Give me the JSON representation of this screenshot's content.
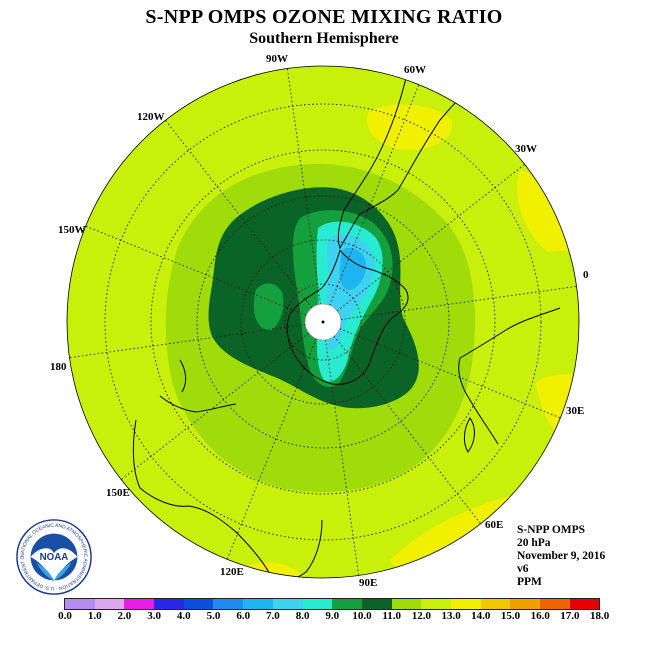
{
  "title": "S-NPP OMPS OZONE MIXING RATIO",
  "subtitle": "Southern Hemisphere",
  "longitude_labels": [
    "90W",
    "60W",
    "30W",
    "0",
    "30E",
    "60E",
    "90E",
    "120E",
    "150E",
    "180",
    "150W",
    "120W"
  ],
  "info": {
    "instrument": "S-NPP OMPS",
    "level": "20 hPa",
    "date": "November 9, 2016",
    "version": "v6",
    "units": "PPM"
  },
  "logo": {
    "text": "NOAA",
    "ring_text": "NATIONAL OCEANIC AND ATMOSPHERIC ADMINISTRATION · U.S. DEPARTMENT OF COMMERCE"
  },
  "colorbar": {
    "ticks": [
      "0.0",
      "1.0",
      "2.0",
      "3.0",
      "4.0",
      "5.0",
      "6.0",
      "7.0",
      "8.0",
      "9.0",
      "10.0",
      "11.0",
      "12.0",
      "13.0",
      "14.0",
      "15.0",
      "16.0",
      "17.0",
      "18.0"
    ],
    "colors": [
      "#b48cf0",
      "#dca8f0",
      "#e61ee6",
      "#2828e6",
      "#0a50dc",
      "#1e8cf0",
      "#1eb4f0",
      "#3cd2f0",
      "#28ebd2",
      "#14a03c",
      "#0a6428",
      "#a0dc0a",
      "#c8f00a",
      "#f0f000",
      "#f0c800",
      "#f0a000",
      "#f06400",
      "#e60000",
      "#824b32"
    ]
  }
}
